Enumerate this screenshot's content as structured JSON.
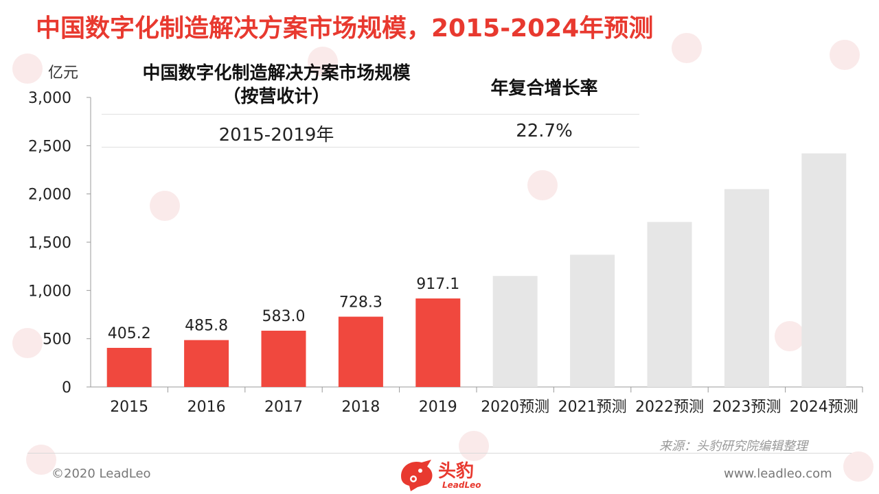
{
  "title": "中国数字化制造解决方案市场规模，2015-2024年预测",
  "unit": "亿元",
  "cagr_table": {
    "header_left_line1": "中国数字化制造解决方案市场规模",
    "header_left_line2": "（按营收计）",
    "header_right": "年复合增长率",
    "period": "2015-2019年",
    "rate": "22.7%"
  },
  "source": "来源：头豹研究院编辑整理",
  "copyright": "©2020 LeadLeo",
  "website": "www.leadleo.com",
  "logo": {
    "cn": "头豹",
    "en": "LeadLeo"
  },
  "colors": {
    "actual": "#f0483e",
    "forecast": "#e6e6e6",
    "title": "#e8392f",
    "axis": "#999999"
  },
  "chart_data": {
    "type": "bar",
    "categories": [
      "2015",
      "2016",
      "2017",
      "2018",
      "2019",
      "2020预测",
      "2021预测",
      "2022预测",
      "2023预测",
      "2024预测"
    ],
    "values": [
      405.2,
      485.8,
      583.0,
      728.3,
      917.1,
      1150,
      1370,
      1710,
      2050,
      2420
    ],
    "data_labels": [
      "405.2",
      "485.8",
      "583.0",
      "728.3",
      "917.1",
      "",
      "",
      "",
      "",
      ""
    ],
    "forecast": [
      false,
      false,
      false,
      false,
      false,
      true,
      true,
      true,
      true,
      true
    ],
    "y_ticks": [
      "0",
      "500",
      "1,000",
      "1,500",
      "2,000",
      "2,500",
      "3,000"
    ],
    "ylabel": "亿元",
    "ylim": [
      0,
      3000
    ],
    "grid": false,
    "legend": "none"
  }
}
